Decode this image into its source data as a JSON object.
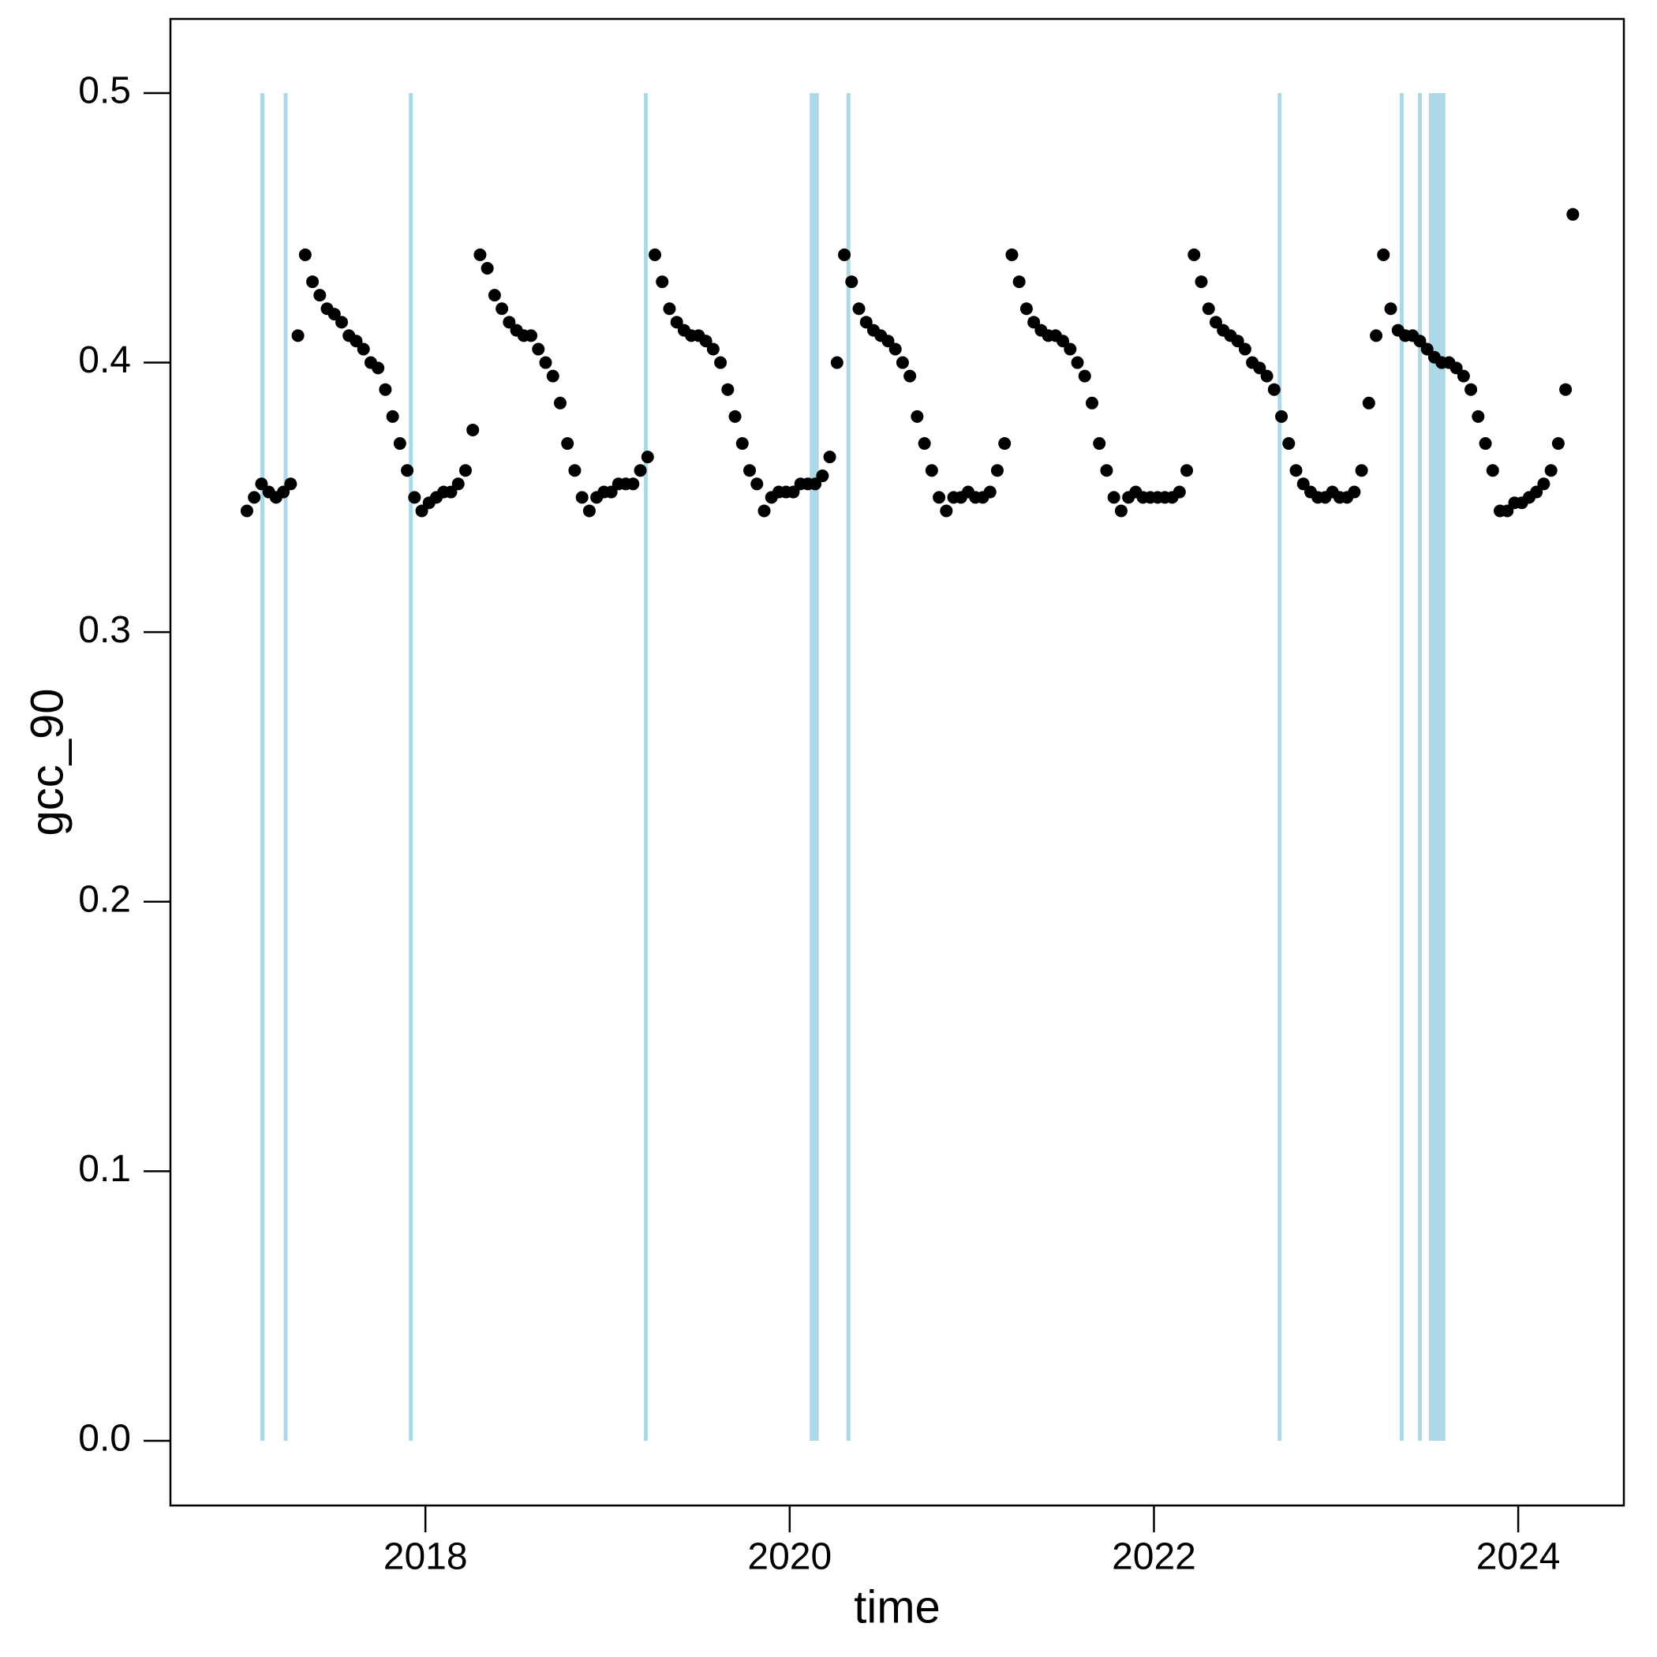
{
  "chart_data": {
    "type": "scatter",
    "xlabel": "time",
    "ylabel": "gcc_90",
    "xlim": [
      2016.6,
      2024.58
    ],
    "ylim": [
      -0.024,
      0.5275
    ],
    "xticks": [
      2018,
      2020,
      2022,
      2024
    ],
    "yticks": [
      {
        "value": 0,
        "label": "0.0"
      },
      0.1,
      0.2,
      0.3,
      0.4,
      0.5
    ],
    "shade_color": "#add8e6",
    "shade_y": [
      0,
      0.5
    ],
    "shaded_ranges": [
      [
        2017.105,
        2017.105
      ],
      [
        2017.23,
        2017.235
      ],
      [
        2017.92,
        2017.92
      ],
      [
        2019.21,
        2019.21
      ],
      [
        2020.11,
        2020.16
      ],
      [
        2020.32,
        2020.325
      ],
      [
        2022.69,
        2022.69
      ],
      [
        2023.36,
        2023.36
      ],
      [
        2023.46,
        2023.46
      ],
      [
        2023.51,
        2023.6
      ]
    ],
    "color": "#000000",
    "x": [
      2017.02,
      2017.06,
      2017.1,
      2017.14,
      2017.18,
      2017.22,
      2017.26,
      2017.3,
      2017.34,
      2017.38,
      2017.42,
      2017.46,
      2017.5,
      2017.54,
      2017.58,
      2017.62,
      2017.66,
      2017.7,
      2017.74,
      2017.78,
      2017.82,
      2017.86,
      2017.9,
      2017.94,
      2017.98,
      2018.02,
      2018.06,
      2018.1,
      2018.14,
      2018.18,
      2018.22,
      2018.26,
      2018.3,
      2018.34,
      2018.38,
      2018.42,
      2018.46,
      2018.5,
      2018.54,
      2018.58,
      2018.62,
      2018.66,
      2018.7,
      2018.74,
      2018.78,
      2018.82,
      2018.86,
      2018.9,
      2018.94,
      2018.98,
      2019.02,
      2019.06,
      2019.1,
      2019.14,
      2019.18,
      2019.22,
      2019.26,
      2019.3,
      2019.34,
      2019.38,
      2019.42,
      2019.46,
      2019.5,
      2019.54,
      2019.58,
      2019.62,
      2019.66,
      2019.7,
      2019.74,
      2019.78,
      2019.82,
      2019.86,
      2019.9,
      2019.94,
      2019.98,
      2020.02,
      2020.06,
      2020.1,
      2020.14,
      2020.18,
      2020.22,
      2020.26,
      2020.3,
      2020.34,
      2020.38,
      2020.42,
      2020.46,
      2020.5,
      2020.54,
      2020.58,
      2020.62,
      2020.66,
      2020.7,
      2020.74,
      2020.78,
      2020.82,
      2020.86,
      2020.9,
      2020.94,
      2020.98,
      2021.02,
      2021.06,
      2021.1,
      2021.14,
      2021.18,
      2021.22,
      2021.26,
      2021.3,
      2021.34,
      2021.38,
      2021.42,
      2021.46,
      2021.5,
      2021.54,
      2021.58,
      2021.62,
      2021.66,
      2021.7,
      2021.74,
      2021.78,
      2021.82,
      2021.86,
      2021.9,
      2021.94,
      2021.98,
      2022.02,
      2022.06,
      2022.1,
      2022.14,
      2022.18,
      2022.22,
      2022.26,
      2022.3,
      2022.34,
      2022.38,
      2022.42,
      2022.46,
      2022.5,
      2022.54,
      2022.58,
      2022.62,
      2022.66,
      2022.7,
      2022.74,
      2022.78,
      2022.82,
      2022.86,
      2022.9,
      2022.94,
      2022.98,
      2023.02,
      2023.06,
      2023.1,
      2023.14,
      2023.18,
      2023.22,
      2023.26,
      2023.3,
      2023.34,
      2023.38,
      2023.42,
      2023.46,
      2023.5,
      2023.54,
      2023.58,
      2023.62,
      2023.66,
      2023.7,
      2023.74,
      2023.78,
      2023.82,
      2023.86,
      2023.9,
      2023.94,
      2023.98,
      2024.02,
      2024.06,
      2024.1,
      2024.14,
      2024.18,
      2024.22,
      2024.26,
      2024.3
    ],
    "values": [
      0.345,
      0.35,
      0.355,
      0.352,
      0.35,
      0.352,
      0.355,
      0.41,
      0.44,
      0.43,
      0.425,
      0.42,
      0.418,
      0.415,
      0.41,
      0.408,
      0.405,
      0.4,
      0.398,
      0.39,
      0.38,
      0.37,
      0.36,
      0.35,
      0.345,
      0.348,
      0.35,
      0.352,
      0.352,
      0.355,
      0.36,
      0.375,
      0.44,
      0.435,
      0.425,
      0.42,
      0.415,
      0.412,
      0.41,
      0.41,
      0.405,
      0.4,
      0.395,
      0.385,
      0.37,
      0.36,
      0.35,
      0.345,
      0.35,
      0.352,
      0.352,
      0.355,
      0.355,
      0.355,
      0.36,
      0.365,
      0.44,
      0.43,
      0.42,
      0.415,
      0.412,
      0.41,
      0.41,
      0.408,
      0.405,
      0.4,
      0.39,
      0.38,
      0.37,
      0.36,
      0.355,
      0.345,
      0.35,
      0.352,
      0.352,
      0.352,
      0.355,
      0.355,
      0.355,
      0.358,
      0.365,
      0.4,
      0.44,
      0.43,
      0.42,
      0.415,
      0.412,
      0.41,
      0.408,
      0.405,
      0.4,
      0.395,
      0.38,
      0.37,
      0.36,
      0.35,
      0.345,
      0.35,
      0.35,
      0.352,
      0.35,
      0.35,
      0.352,
      0.36,
      0.37,
      0.44,
      0.43,
      0.42,
      0.415,
      0.412,
      0.41,
      0.41,
      0.408,
      0.405,
      0.4,
      0.395,
      0.385,
      0.37,
      0.36,
      0.35,
      0.345,
      0.35,
      0.352,
      0.35,
      0.35,
      0.35,
      0.35,
      0.35,
      0.352,
      0.36,
      0.44,
      0.43,
      0.42,
      0.415,
      0.412,
      0.41,
      0.408,
      0.405,
      0.4,
      0.398,
      0.395,
      0.39,
      0.38,
      0.37,
      0.36,
      0.355,
      0.352,
      0.35,
      0.35,
      0.352,
      0.35,
      0.35,
      0.352,
      0.36,
      0.385,
      0.41,
      0.44,
      0.42,
      0.412,
      0.41,
      0.41,
      0.408,
      0.405,
      0.402,
      0.4,
      0.4,
      0.398,
      0.395,
      0.39,
      0.38,
      0.37,
      0.36,
      0.345,
      0.345,
      0.348,
      0.348,
      0.35,
      0.352,
      0.355,
      0.36,
      0.37,
      0.39,
      0.455
    ]
  }
}
